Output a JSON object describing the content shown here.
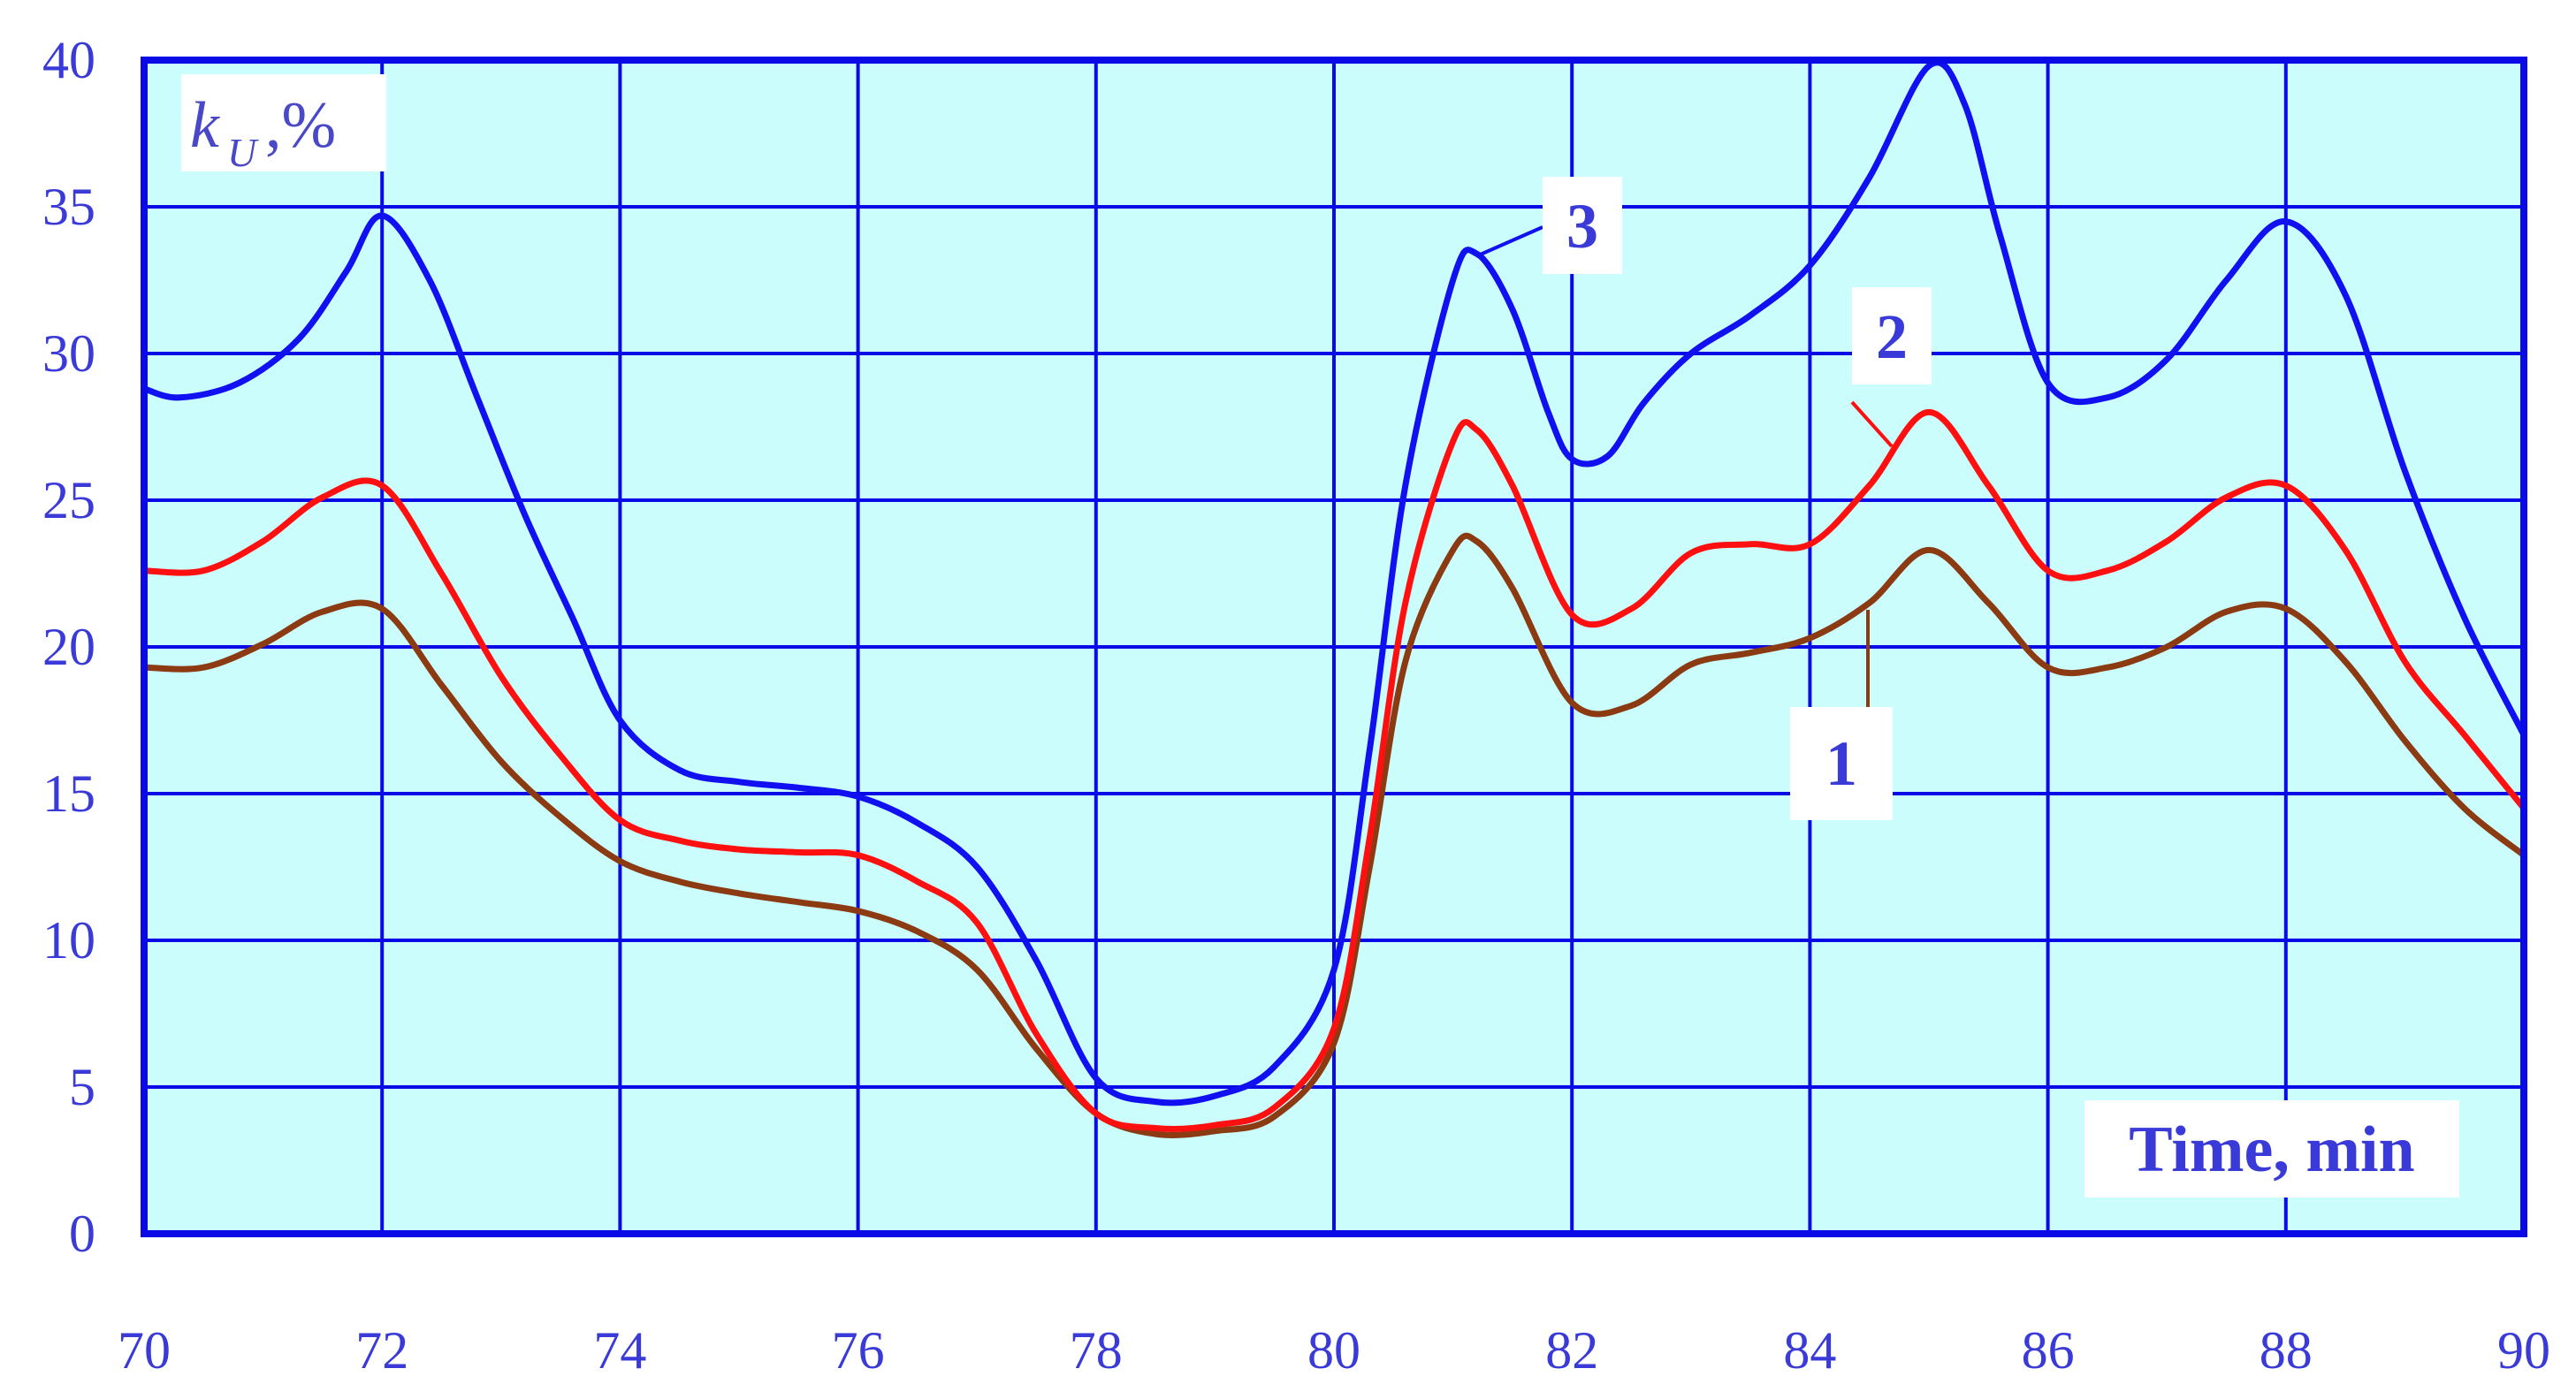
{
  "chart_data": {
    "type": "line",
    "xlabel": "Time, min",
    "ylabel_symbol": "k",
    "ylabel_subscript": "U",
    "ylabel_unit": ",%",
    "xlim": [
      70,
      90
    ],
    "ylim": [
      0,
      40
    ],
    "x_ticks": [
      "70",
      "72",
      "74",
      "76",
      "78",
      "80",
      "82",
      "84",
      "86",
      "88",
      "90"
    ],
    "y_ticks": [
      "0",
      "5",
      "10",
      "15",
      "20",
      "25",
      "30",
      "35",
      "40"
    ],
    "grid": true,
    "colors": {
      "plot_background": "#ccfdfd",
      "grid": "#0a0ae6",
      "tick_text": "#3a3ad8"
    },
    "series": [
      {
        "name": "1",
        "color": "#8b3a12",
        "x": [
          70,
          70.5,
          71,
          71.5,
          72,
          72.5,
          73,
          73.5,
          74,
          74.5,
          75,
          75.5,
          76,
          76.5,
          77,
          77.5,
          78,
          78.5,
          79,
          79.5,
          80,
          80.3,
          80.6,
          81,
          81.2,
          81.5,
          82,
          82.5,
          83,
          83.5,
          84,
          84.5,
          85,
          85.5,
          86,
          86.5,
          87,
          87.5,
          88,
          88.5,
          89,
          89.5,
          90
        ],
        "y": [
          19.3,
          19.3,
          20.1,
          21.2,
          21.3,
          18.7,
          16.1,
          14.2,
          12.7,
          12.0,
          11.6,
          11.3,
          11.0,
          10.3,
          9.0,
          6.3,
          4.1,
          3.4,
          3.5,
          4.0,
          6.5,
          12.5,
          19.5,
          23.3,
          23.6,
          22.0,
          18.1,
          18.0,
          19.4,
          19.8,
          20.3,
          21.5,
          23.3,
          21.5,
          19.3,
          19.3,
          20.0,
          21.2,
          21.3,
          19.5,
          16.8,
          14.5,
          12.9
        ]
      },
      {
        "name": "2",
        "color": "#ff1010",
        "x": [
          70,
          70.5,
          71,
          71.5,
          72,
          72.5,
          73,
          73.5,
          74,
          74.5,
          75,
          75.5,
          76,
          76.5,
          77,
          77.5,
          78,
          78.5,
          79,
          79.5,
          80,
          80.3,
          80.6,
          81,
          81.2,
          81.5,
          82,
          82.5,
          83,
          83.5,
          84,
          84.5,
          85,
          85.5,
          86,
          86.5,
          87,
          87.5,
          88,
          88.5,
          89,
          89.5,
          90
        ],
        "y": [
          22.6,
          22.6,
          23.6,
          25.1,
          25.5,
          22.5,
          19.0,
          16.3,
          14.1,
          13.4,
          13.1,
          13.0,
          12.9,
          12.0,
          10.6,
          6.8,
          4.1,
          3.6,
          3.7,
          4.3,
          7.0,
          13.5,
          21.5,
          27.0,
          27.4,
          25.5,
          21.1,
          21.3,
          23.2,
          23.5,
          23.5,
          25.5,
          28.0,
          25.5,
          22.6,
          22.6,
          23.6,
          25.1,
          25.5,
          23.3,
          19.5,
          17.0,
          14.5
        ]
      },
      {
        "name": "3",
        "color": "#1010f0",
        "x": [
          70,
          70.3,
          70.8,
          71.3,
          71.7,
          72,
          72.4,
          72.8,
          73.2,
          73.6,
          74,
          74.5,
          75,
          75.5,
          76,
          76.5,
          77,
          77.5,
          78,
          78.5,
          79,
          79.5,
          80,
          80.3,
          80.6,
          81,
          81.2,
          81.5,
          81.8,
          82,
          82.3,
          82.6,
          83,
          83.5,
          84,
          84.5,
          85,
          85.3,
          85.6,
          86,
          86.5,
          87,
          87.5,
          88,
          88.5,
          89,
          89.5,
          90
        ],
        "y": [
          28.8,
          28.5,
          29.0,
          30.5,
          32.8,
          34.7,
          32.5,
          28.5,
          24.5,
          21.0,
          17.5,
          15.8,
          15.4,
          15.2,
          14.9,
          14.0,
          12.5,
          9.3,
          5.3,
          4.5,
          4.7,
          5.7,
          9.0,
          16.5,
          25.5,
          32.5,
          33.4,
          31.5,
          28.0,
          26.4,
          26.5,
          28.3,
          30.0,
          31.3,
          33.0,
          36.0,
          39.8,
          38.5,
          34.0,
          29.0,
          28.5,
          29.8,
          32.5,
          34.5,
          32.0,
          26.0,
          21.0,
          17.0
        ]
      }
    ]
  }
}
